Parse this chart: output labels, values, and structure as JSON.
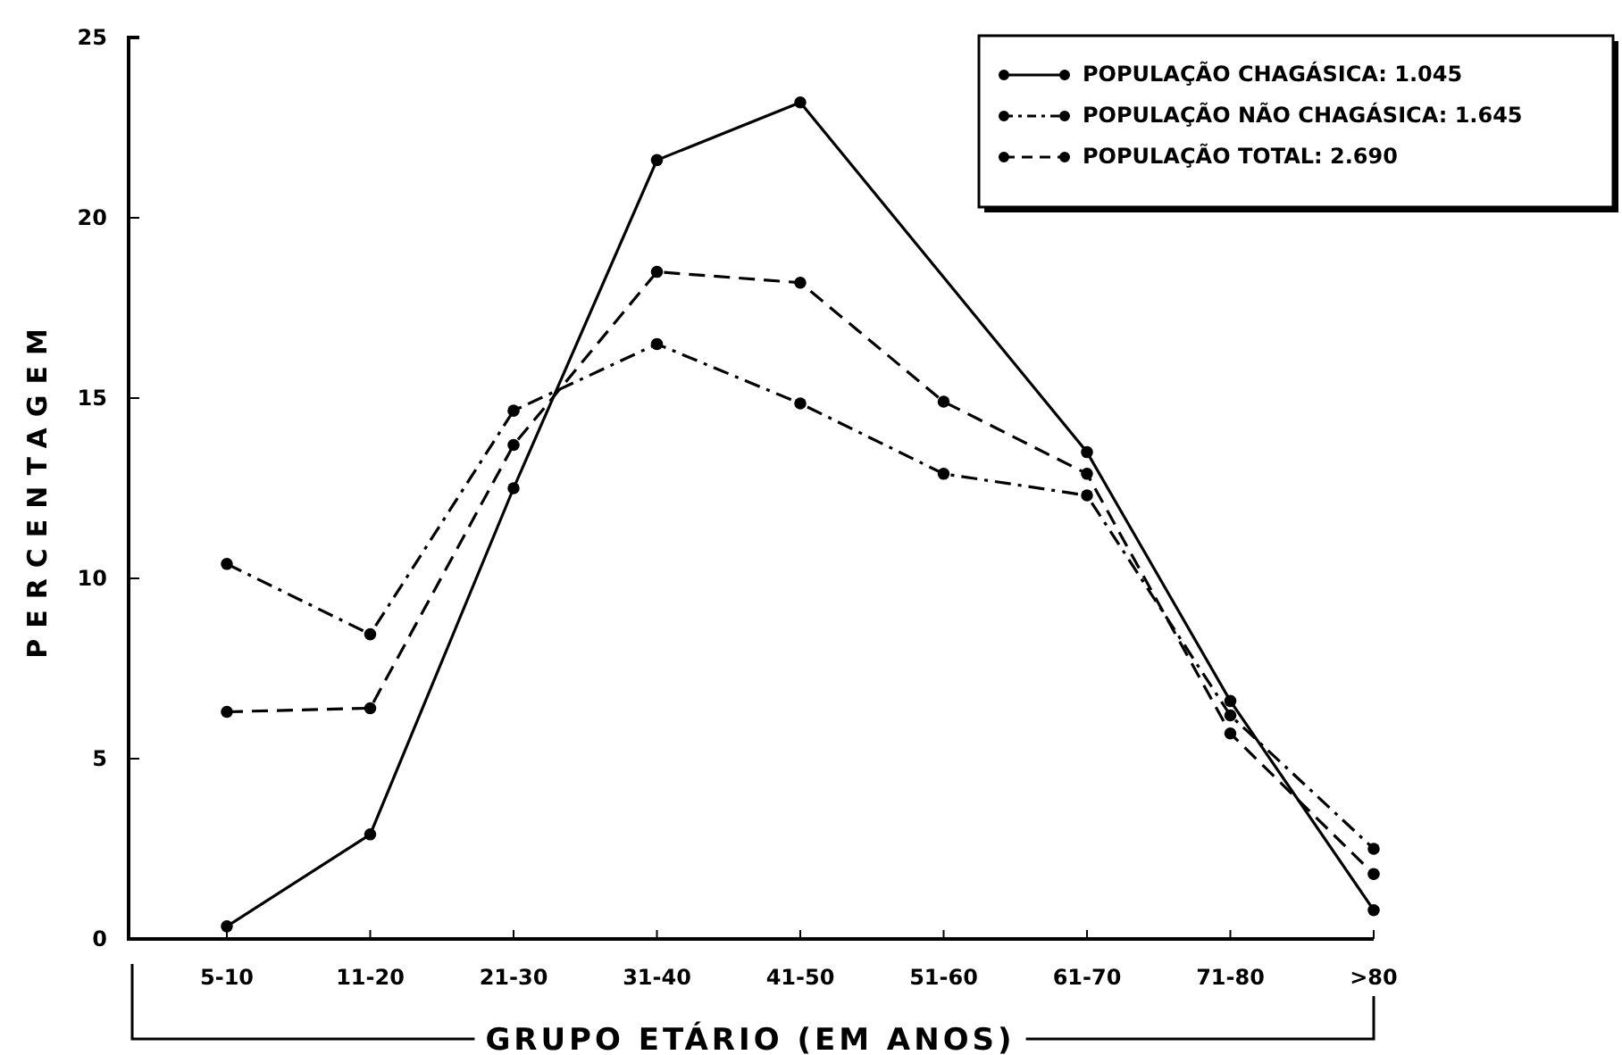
{
  "chart_data": {
    "type": "line",
    "xlabel": "GRUPO ETÁRIO (EM ANOS)",
    "ylabel": "PERCENTAGEM",
    "categories": [
      "5-10",
      "11-20",
      "21-30",
      "31-40",
      "41-50",
      "51-60",
      "61-70",
      "71-80",
      ">80"
    ],
    "ylim": [
      0,
      25
    ],
    "yticks": [
      0,
      5,
      10,
      15,
      20,
      25
    ],
    "grid": false,
    "legend": "top right",
    "marker": "circle",
    "series": [
      {
        "name": "POPULAÇÃO CHAGÁSICA: 1.045",
        "color": "#000000",
        "line_style": "solid",
        "values": [
          0.35,
          2.9,
          12.5,
          21.6,
          23.2,
          null,
          13.5,
          6.6,
          0.8
        ]
      },
      {
        "name": "POPULAÇÃO NÃO CHAGÁSICA: 1.645",
        "color": "#000000",
        "line_style": "dashdot",
        "values": [
          10.4,
          8.45,
          14.65,
          16.5,
          14.85,
          12.9,
          12.3,
          6.2,
          2.5
        ]
      },
      {
        "name": "POPULAÇÃO TOTAL: 2.690",
        "color": "#000000",
        "line_style": "dashed",
        "values": [
          6.3,
          6.4,
          13.7,
          18.5,
          18.2,
          14.9,
          12.9,
          5.7,
          1.8
        ]
      }
    ]
  }
}
